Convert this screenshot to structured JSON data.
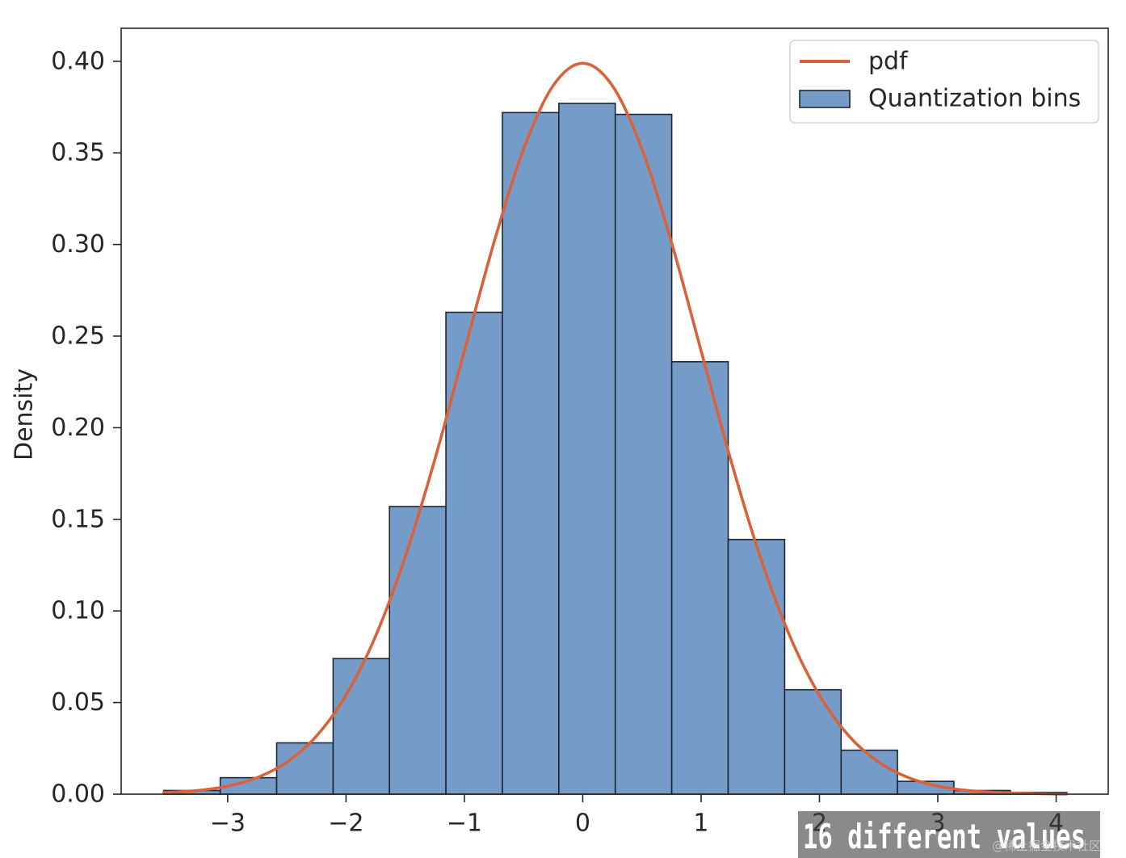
{
  "watermark": "@稀土掘金技术社区",
  "chart_data": {
    "type": "bar",
    "ylabel": "Density",
    "xlim": [
      -3.9,
      4.44
    ],
    "ylim": [
      0,
      0.418
    ],
    "xticks": [
      -3,
      -2,
      -1,
      0,
      1,
      2,
      3,
      4
    ],
    "xtick_labels": [
      "−3",
      "−2",
      "−1",
      "0",
      "1",
      "2",
      "3",
      "4"
    ],
    "yticks": [
      0,
      0.05,
      0.1,
      0.15,
      0.2,
      0.25,
      0.3,
      0.35,
      0.4
    ],
    "ytick_labels": [
      "0.00",
      "0.05",
      "0.10",
      "0.15",
      "0.20",
      "0.25",
      "0.30",
      "0.35",
      "0.40"
    ],
    "grid": false,
    "legend": "top-right",
    "annotation": "16 different values",
    "series": [
      {
        "name": "Quantization bins",
        "type": "bar",
        "bin_edges": [
          -3.54,
          -3.063,
          -2.586,
          -2.109,
          -1.633,
          -1.156,
          -0.679,
          -0.202,
          0.275,
          0.752,
          1.229,
          1.706,
          2.183,
          2.659,
          3.136,
          3.613,
          4.09
        ],
        "values": [
          0.002,
          0.009,
          0.028,
          0.074,
          0.157,
          0.263,
          0.372,
          0.377,
          0.371,
          0.236,
          0.139,
          0.057,
          0.024,
          0.007,
          0.002,
          0.001
        ],
        "color": "#759bc8",
        "edgecolor": "#1e2633"
      },
      {
        "name": "pdf",
        "type": "line",
        "x": [
          -3.54,
          -3.25,
          -3.0,
          -2.75,
          -2.5,
          -2.25,
          -2.0,
          -1.75,
          -1.5,
          -1.25,
          -1.0,
          -0.75,
          -0.5,
          -0.25,
          0,
          0.25,
          0.5,
          0.75,
          1.0,
          1.25,
          1.5,
          1.75,
          2.0,
          2.25,
          2.5,
          2.75,
          3.0,
          3.25,
          3.5,
          3.75,
          4.0,
          4.09
        ],
        "y": [
          0.0008,
          0.002,
          0.0044,
          0.0091,
          0.0175,
          0.0317,
          0.054,
          0.0863,
          0.1295,
          0.1826,
          0.242,
          0.3011,
          0.3521,
          0.3867,
          0.3989,
          0.3867,
          0.3521,
          0.3011,
          0.242,
          0.1826,
          0.1295,
          0.0863,
          0.054,
          0.0317,
          0.0175,
          0.0091,
          0.0044,
          0.002,
          0.0009,
          0.0004,
          0.0001,
          0.0001
        ],
        "color": "#d9623b"
      }
    ]
  }
}
